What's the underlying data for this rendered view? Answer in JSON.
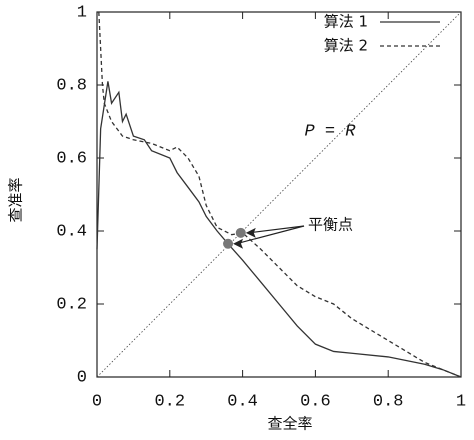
{
  "chart_data": {
    "type": "line",
    "xlabel": "查全率",
    "ylabel": "查准率",
    "xlim": [
      0,
      1
    ],
    "ylim": [
      0,
      1
    ],
    "xticks": [
      0,
      0.2,
      0.4,
      0.6,
      0.8,
      1
    ],
    "yticks": [
      0,
      0.2,
      0.4,
      0.6,
      0.8,
      1
    ],
    "legend": "upper right",
    "series": [
      {
        "name": "算法 1",
        "color": "#333333",
        "style": "solid",
        "x": [
          0,
          0.01,
          0.03,
          0.04,
          0.06,
          0.07,
          0.08,
          0.1,
          0.13,
          0.15,
          0.2,
          0.22,
          0.25,
          0.28,
          0.3,
          0.33,
          0.36,
          0.4,
          0.45,
          0.5,
          0.55,
          0.6,
          0.65,
          0.7,
          0.8,
          0.9,
          0.95,
          1
        ],
        "values": [
          0.35,
          0.68,
          0.81,
          0.75,
          0.78,
          0.7,
          0.72,
          0.66,
          0.65,
          0.62,
          0.6,
          0.56,
          0.52,
          0.48,
          0.44,
          0.4,
          0.365,
          0.32,
          0.26,
          0.2,
          0.14,
          0.09,
          0.07,
          0.065,
          0.055,
          0.035,
          0.02,
          0
        ]
      },
      {
        "name": "算法 2",
        "color": "#333333",
        "style": "dashed",
        "x": [
          0.005,
          0.01,
          0.015,
          0.02,
          0.04,
          0.07,
          0.1,
          0.15,
          0.2,
          0.22,
          0.25,
          0.28,
          0.3,
          0.33,
          0.37,
          0.4,
          0.45,
          0.5,
          0.55,
          0.6,
          0.65,
          0.7,
          0.75,
          0.8,
          0.85,
          0.9,
          0.95,
          1
        ],
        "values": [
          1,
          0.9,
          0.8,
          0.75,
          0.7,
          0.66,
          0.65,
          0.64,
          0.62,
          0.63,
          0.6,
          0.55,
          0.47,
          0.41,
          0.39,
          0.395,
          0.35,
          0.3,
          0.25,
          0.22,
          0.2,
          0.16,
          0.13,
          0.1,
          0.07,
          0.04,
          0.02,
          0
        ]
      }
    ],
    "diagonal_label": "P = R",
    "balance_label": "平衡点",
    "balance_points": {
      "x": [
        0.36,
        0.395
      ],
      "values": [
        0.365,
        0.395
      ],
      "color": "#777777"
    }
  }
}
